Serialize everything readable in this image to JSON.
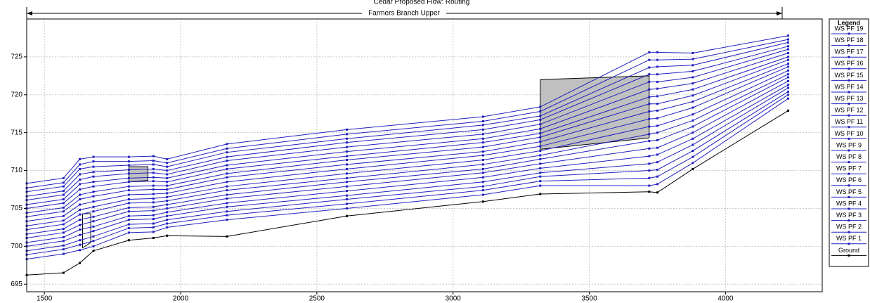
{
  "chart_data": {
    "type": "line",
    "title": "Cedar Proposed    Flow: Routing",
    "reach_label": "Farmers Branch Upper",
    "legend_title": "Legend",
    "x": [
      1435,
      1570,
      1630,
      1680,
      1810,
      1900,
      1950,
      2170,
      2610,
      3110,
      3320,
      3720,
      3750,
      3880,
      4230
    ],
    "xlim": [
      1435,
      4355
    ],
    "ylim": [
      694,
      730
    ],
    "xticks": [
      1500,
      2000,
      2500,
      3000,
      3500,
      4000
    ],
    "yticks": [
      695,
      700,
      705,
      710,
      715,
      720,
      725
    ],
    "grid": true,
    "series": [
      {
        "name": "WS  PF 19",
        "color": "#2020c0",
        "values": [
          708.3,
          709.0,
          711.5,
          711.8,
          711.8,
          711.9,
          711.5,
          713.5,
          715.4,
          717.1,
          718.4,
          725.6,
          725.6,
          725.5,
          727.8
        ]
      },
      {
        "name": "WS  PF 18",
        "color": "#2020c0",
        "values": [
          707.7,
          708.4,
          710.8,
          711.2,
          711.2,
          711.3,
          711.0,
          712.9,
          714.8,
          716.5,
          717.8,
          724.6,
          724.6,
          724.7,
          727.3
        ]
      },
      {
        "name": "WS  PF 17",
        "color": "#2020c0",
        "values": [
          707.2,
          707.9,
          710.2,
          710.5,
          710.7,
          710.8,
          710.5,
          712.4,
          714.2,
          716.0,
          717.2,
          723.6,
          723.7,
          723.9,
          726.9
        ]
      },
      {
        "name": "WS  PF 16",
        "color": "#2020c0",
        "values": [
          706.6,
          707.3,
          709.5,
          709.8,
          710.1,
          710.2,
          710.0,
          711.8,
          713.7,
          715.4,
          716.7,
          722.7,
          722.7,
          723.1,
          726.4
        ]
      },
      {
        "name": "WS  PF 15",
        "color": "#2020c0",
        "values": [
          706.1,
          706.8,
          708.8,
          709.2,
          709.6,
          709.7,
          709.5,
          711.3,
          713.1,
          714.8,
          716.1,
          721.7,
          721.7,
          722.3,
          726.0
        ]
      },
      {
        "name": "WS  PF 14",
        "color": "#2020c0",
        "values": [
          705.5,
          706.2,
          708.2,
          708.5,
          709.0,
          709.1,
          709.0,
          710.7,
          712.5,
          714.2,
          715.5,
          720.7,
          720.8,
          721.5,
          725.5
        ]
      },
      {
        "name": "WS  PF 13",
        "color": "#2020c0",
        "values": [
          705.0,
          705.7,
          707.5,
          707.9,
          708.5,
          708.6,
          708.5,
          710.2,
          711.9,
          713.7,
          714.9,
          719.7,
          719.8,
          720.7,
          725.0
        ]
      },
      {
        "name": "WS  PF 12",
        "color": "#2020c0",
        "values": [
          704.4,
          705.1,
          706.8,
          707.2,
          707.9,
          708.0,
          708.0,
          709.6,
          711.4,
          713.1,
          714.4,
          718.8,
          718.8,
          719.9,
          724.6
        ]
      },
      {
        "name": "WS  PF 11",
        "color": "#2020c0",
        "values": [
          703.9,
          704.6,
          706.2,
          706.6,
          707.4,
          707.5,
          707.5,
          709.1,
          710.8,
          712.5,
          713.8,
          717.8,
          717.9,
          719.1,
          724.1
        ]
      },
      {
        "name": "WS  PF 10",
        "color": "#2020c0",
        "values": [
          703.3,
          704.0,
          705.5,
          705.9,
          706.8,
          706.9,
          707.0,
          708.5,
          710.2,
          712.0,
          713.2,
          716.8,
          716.9,
          718.3,
          723.7
        ]
      },
      {
        "name": "WS  PF 9",
        "color": "#2020c0",
        "values": [
          702.7,
          703.4,
          704.8,
          705.2,
          706.2,
          706.3,
          706.5,
          707.9,
          709.6,
          711.4,
          712.6,
          715.8,
          715.9,
          717.4,
          723.2
        ]
      },
      {
        "name": "WS  PF 8",
        "color": "#2020c0",
        "values": [
          702.2,
          702.9,
          704.2,
          704.6,
          705.7,
          705.8,
          706.0,
          707.4,
          709.0,
          710.8,
          712.0,
          714.8,
          715.0,
          716.6,
          722.7
        ]
      },
      {
        "name": "WS  PF 7",
        "color": "#2020c0",
        "values": [
          701.6,
          702.3,
          703.5,
          703.9,
          705.1,
          705.2,
          705.5,
          706.8,
          708.5,
          710.2,
          711.5,
          713.9,
          714.0,
          715.8,
          722.3
        ]
      },
      {
        "name": "WS  PF 6",
        "color": "#2020c0",
        "values": [
          701.1,
          701.8,
          702.8,
          703.3,
          704.6,
          704.7,
          705.0,
          706.3,
          707.9,
          709.7,
          710.9,
          712.9,
          713.0,
          715.0,
          721.8
        ]
      },
      {
        "name": "WS  PF 5",
        "color": "#2020c0",
        "values": [
          700.5,
          701.2,
          702.2,
          702.6,
          704.0,
          704.1,
          704.5,
          705.7,
          707.3,
          709.1,
          710.3,
          711.9,
          712.1,
          714.2,
          721.3
        ]
      },
      {
        "name": "WS  PF 4",
        "color": "#2020c0",
        "values": [
          700.0,
          700.7,
          701.5,
          702.0,
          703.5,
          703.6,
          704.0,
          705.2,
          706.7,
          708.5,
          709.7,
          710.9,
          711.1,
          713.4,
          720.9
        ]
      },
      {
        "name": "WS  PF 3",
        "color": "#2020c0",
        "values": [
          699.4,
          700.1,
          700.8,
          701.3,
          702.9,
          703.0,
          703.5,
          704.6,
          706.2,
          707.9,
          709.2,
          710.0,
          710.1,
          712.6,
          720.4
        ]
      },
      {
        "name": "WS  PF 2",
        "color": "#2020c0",
        "values": [
          698.9,
          699.6,
          700.2,
          700.7,
          702.4,
          702.5,
          703.0,
          704.1,
          705.6,
          707.4,
          708.6,
          709.0,
          709.2,
          711.8,
          720.0
        ]
      },
      {
        "name": "WS  PF 1",
        "color": "#2020c0",
        "values": [
          698.3,
          699.0,
          699.5,
          700.0,
          701.8,
          701.9,
          702.5,
          703.5,
          705.0,
          706.8,
          708.0,
          708.0,
          708.2,
          711.0,
          719.5
        ]
      },
      {
        "name": "Ground",
        "color": "#000000",
        "values": [
          696.2,
          696.5,
          697.8,
          699.4,
          700.8,
          701.1,
          701.4,
          701.3,
          704.0,
          705.9,
          706.9,
          707.2,
          707.1,
          710.2,
          717.9
        ]
      }
    ]
  }
}
